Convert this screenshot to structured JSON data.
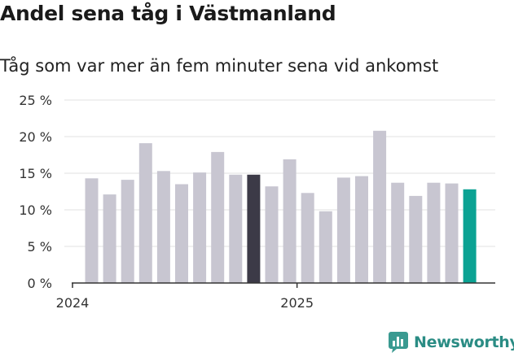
{
  "chart_data": {
    "type": "bar",
    "title": "Andel sena tåg i Västmanland",
    "subtitle": "Tåg som var mer än fem minuter sena vid ankomst",
    "xlabel": "",
    "ylabel": "",
    "ylim": [
      0,
      25
    ],
    "yticks": [
      {
        "value": 0,
        "label": "0 %"
      },
      {
        "value": 5,
        "label": "5 %"
      },
      {
        "value": 10,
        "label": "10 %"
      },
      {
        "value": 15,
        "label": "15 %"
      },
      {
        "value": 20,
        "label": "20 %"
      },
      {
        "value": 25,
        "label": "25 %"
      }
    ],
    "xticks": [
      {
        "index": 0,
        "label": "2024"
      },
      {
        "index": 12,
        "label": "2025"
      }
    ],
    "grid": true,
    "values": [
      14.3,
      12.1,
      14.1,
      19.1,
      15.3,
      13.5,
      15.1,
      17.9,
      14.8,
      14.8,
      13.2,
      16.9,
      12.3,
      9.8,
      14.4,
      14.6,
      20.8,
      13.7,
      11.9,
      13.7,
      13.6,
      12.8
    ],
    "colors": {
      "default": "#c8c6d1",
      "highlight": "#3c3a47",
      "latest": "#0ba293",
      "grid": "#e0e0e0",
      "axis": "#333333",
      "ticktext": "#333333"
    },
    "highlight_indices": [
      9
    ],
    "latest_index": 21
  },
  "brand": {
    "name": "Newsworthy",
    "color": "#2a8c84",
    "icon": "newsworthy-bar-icon"
  }
}
